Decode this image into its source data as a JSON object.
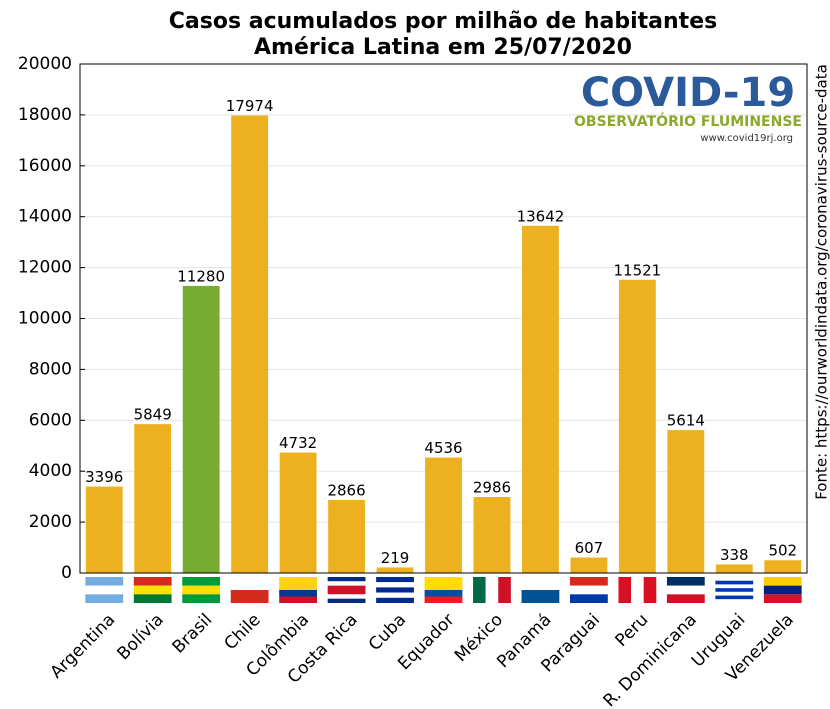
{
  "chart_data": {
    "type": "bar",
    "title": "Casos acumulados por milhão de habitantes",
    "subtitle": "América Latina em 25/07/2020",
    "categories": [
      "Argentina",
      "Bolívia",
      "Brasil",
      "Chile",
      "Colômbia",
      "Costa Rica",
      "Cuba",
      "Equador",
      "México",
      "Panamá",
      "Paraguai",
      "Peru",
      "R. Dominicana",
      "Uruguai",
      "Venezuela"
    ],
    "values": [
      3396,
      5849,
      11280,
      17974,
      4732,
      2866,
      219,
      4536,
      2986,
      13642,
      607,
      11521,
      5614,
      338,
      502
    ],
    "colors": [
      "#edb120",
      "#edb120",
      "#77ac30",
      "#edb120",
      "#edb120",
      "#edb120",
      "#edb120",
      "#edb120",
      "#edb120",
      "#edb120",
      "#edb120",
      "#edb120",
      "#edb120",
      "#edb120",
      "#edb120"
    ],
    "ylim": [
      0,
      20000
    ],
    "yticks": [
      0,
      2000,
      4000,
      6000,
      8000,
      10000,
      12000,
      14000,
      16000,
      18000,
      20000
    ],
    "grid": true,
    "source": "Fonte: https://ourworldindata.org/coronavirus-source-data",
    "logo": {
      "title": "COVID-19",
      "subtitle": "OBSERVATÓRIO FLUMINENSE",
      "url": "www.covid19rj.org"
    }
  }
}
